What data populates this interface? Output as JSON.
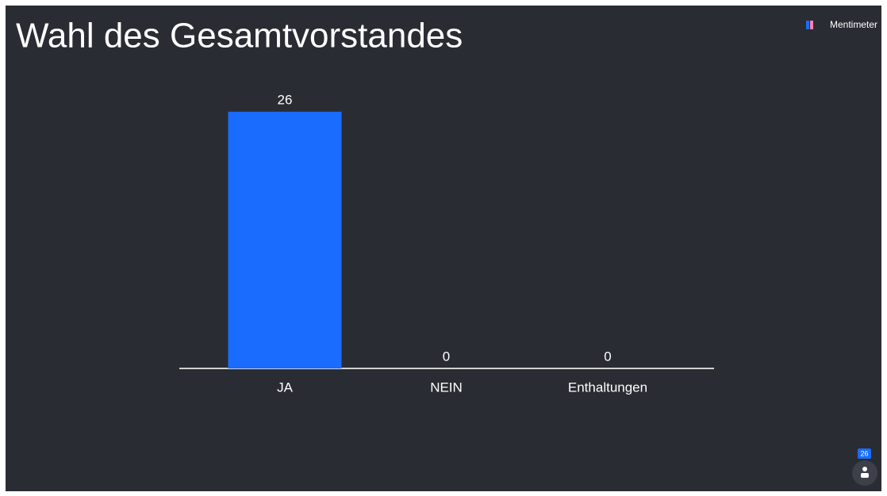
{
  "brand": "Mentimeter",
  "participants": 26,
  "chart_data": {
    "type": "bar",
    "title": "Wahl des Gesamtvorstandes",
    "categories": [
      "JA",
      "NEIN",
      "Enthaltungen"
    ],
    "values": [
      26,
      0,
      0
    ],
    "color": "#196cff"
  }
}
